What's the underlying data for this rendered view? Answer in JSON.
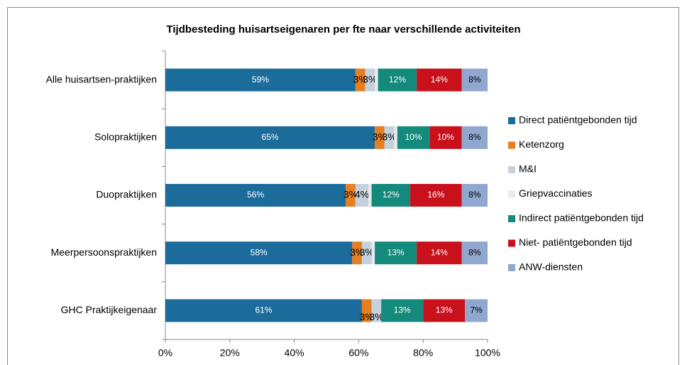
{
  "chart_data": {
    "type": "stacked_barh",
    "title": "Tijdbesteding huisartseigenaren  per fte naar verschillende activiteiten",
    "categories": [
      "Alle huisartsen-praktijken",
      "Solopraktijken",
      "Duopraktijken",
      "Meerpersoonspraktijken",
      "GHC Praktijkeigenaar"
    ],
    "series": [
      {
        "name": "Direct patiëntgebonden tijd",
        "color": "#1c6c9b",
        "values": [
          59,
          65,
          56,
          58,
          61
        ],
        "value_labels": [
          "59%",
          "65%",
          "56%",
          "58%",
          "61%"
        ]
      },
      {
        "name": "Ketenzorg",
        "color": "#e67e22",
        "values": [
          3,
          3,
          3,
          3,
          3
        ],
        "value_labels": [
          "3%",
          "3%",
          "3%",
          "3%",
          "3%"
        ]
      },
      {
        "name": "M&I",
        "color": "#c5d2de",
        "values": [
          3,
          3,
          4,
          3,
          3
        ],
        "value_labels": [
          "3%",
          "3%",
          "4%",
          "3%",
          "3%"
        ]
      },
      {
        "name": "Griepvaccinaties",
        "color": "#e9e9ee",
        "values": [
          1,
          1,
          1,
          1,
          0
        ],
        "value_labels": [
          null,
          null,
          null,
          null,
          null
        ]
      },
      {
        "name": "Indirect patiëntgebonden tijd",
        "color": "#138a7b",
        "values": [
          12,
          10,
          12,
          13,
          13
        ],
        "value_labels": [
          "12%",
          "10%",
          "12%",
          "13%",
          "13%"
        ]
      },
      {
        "name": "Niet- patiëntgebonden tijd",
        "color": "#c8111b",
        "values": [
          14,
          10,
          16,
          14,
          13
        ],
        "value_labels": [
          "14%",
          "10%",
          "16%",
          "14%",
          "13%"
        ]
      },
      {
        "name": "ANW-diensten",
        "color": "#90a7d0",
        "values": [
          8,
          8,
          8,
          8,
          7
        ],
        "value_labels": [
          "8%",
          "8%",
          "8%",
          "8%",
          "7%"
        ]
      }
    ],
    "xlim": [
      0,
      100
    ],
    "xticks": [
      {
        "value": 0,
        "label": "0%"
      },
      {
        "value": 20,
        "label": "20%"
      },
      {
        "value": 40,
        "label": "40%"
      },
      {
        "value": 60,
        "label": "60%"
      },
      {
        "value": 80,
        "label": "80%"
      },
      {
        "value": 100,
        "label": "100%"
      }
    ],
    "legend": "right"
  }
}
